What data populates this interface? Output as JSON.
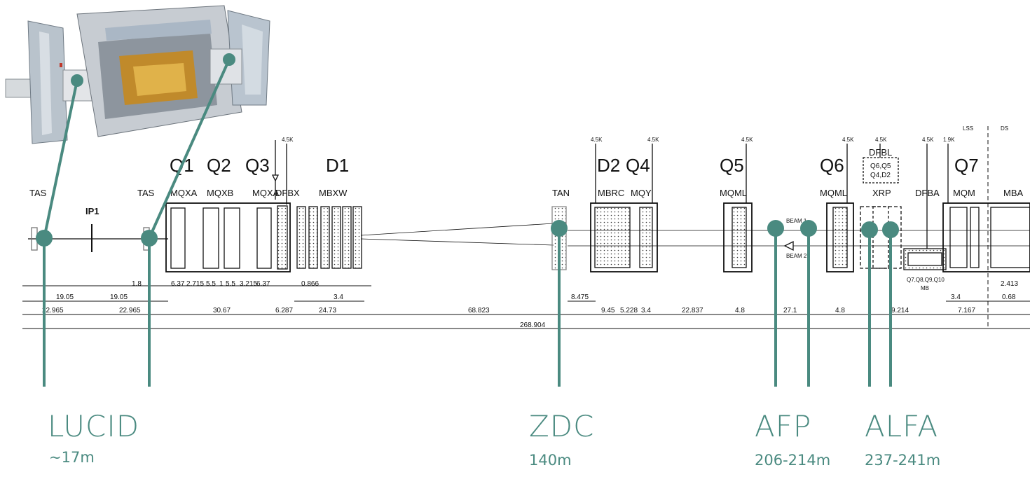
{
  "colors": {
    "accent": "#4a8a80",
    "line": "#111111"
  },
  "magnets": {
    "q1": "Q1",
    "q2": "Q2",
    "q3": "Q3",
    "d1": "D1",
    "d2": "D2",
    "q4": "Q4",
    "q5": "Q5",
    "q6": "Q6",
    "q7": "Q7"
  },
  "components": {
    "tas_left": "TAS",
    "ip1": "IP1",
    "tas_right": "TAS",
    "mqxa1": "MQXA",
    "mqxb": "MQXB",
    "mqxa2": "MQXA",
    "dfbx": "DFBX",
    "mbxw": "MBXW",
    "tan": "TAN",
    "mbrc": "MBRC",
    "mqy": "MQY",
    "mqml1": "MQML",
    "mqml2": "MQML",
    "dfbl": "DFBL",
    "dfbl_box1": "Q6,Q5",
    "dfbl_box2": "Q4,D2",
    "xrp": "XRP",
    "dfba": "DFBA",
    "mqm": "MQM",
    "mba": "MBA",
    "lss": "LSS",
    "ds": "DS",
    "beam1": "BEAM 1",
    "beam2": "BEAM 2",
    "mb_list": "Q7,Q8,Q9,Q10",
    "mb": "MB"
  },
  "temps": {
    "t45": "4.5K",
    "t19": "1.9K"
  },
  "dimensions": {
    "row1": [
      "19.05",
      "19.05",
      "1.8",
      "6.37",
      "2.715",
      "5.5",
      "1",
      "5.5",
      "3.215",
      "6.37",
      "0.866",
      "3.4",
      "3.4",
      "2.413"
    ],
    "row2": [
      "22.965",
      "22.965",
      "30.67",
      "6.287",
      "24.73",
      "68.823",
      "8.475",
      "9.45",
      "5.228",
      "3.4",
      "22.837",
      "4.8",
      "27.1",
      "4.8",
      "9.214",
      "7.167",
      "0.68"
    ],
    "total": "268.904"
  },
  "detectors": [
    {
      "name": "LUCID",
      "distance": "~17m"
    },
    {
      "name": "ZDC",
      "distance": "140m"
    },
    {
      "name": "AFP",
      "distance": "206-214m"
    },
    {
      "name": "ALFA",
      "distance": "237-241m"
    }
  ]
}
